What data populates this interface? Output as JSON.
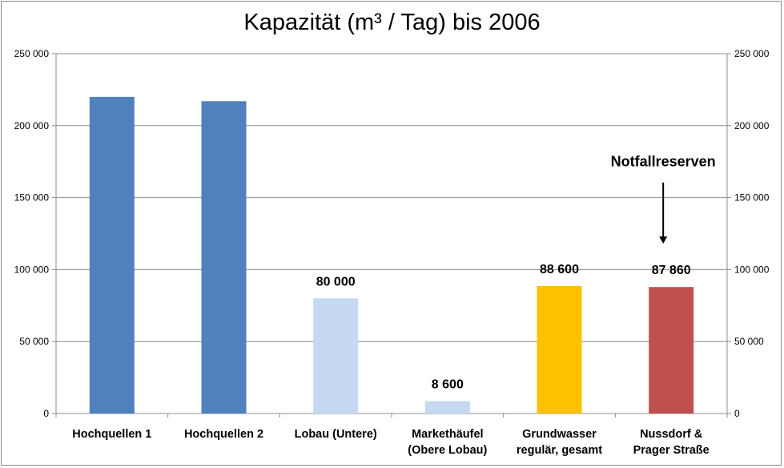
{
  "chart_data": {
    "type": "bar",
    "title": "Kapazität (m³ / Tag) bis 2006",
    "categories": [
      [
        "Hochquellen 1"
      ],
      [
        "Hochquellen 2"
      ],
      [
        "Lobau  (Untere)"
      ],
      [
        "Markethäufel",
        "(Obere Lobau)"
      ],
      [
        "Grundwasser",
        "regulär, gesamt"
      ],
      [
        "Nussdorf &",
        "Prager Straße"
      ]
    ],
    "values": [
      220000,
      217000,
      80000,
      8600,
      88600,
      87860
    ],
    "colors": [
      "#4f81bd",
      "#4f81bd",
      "#c6d9f1",
      "#c6d9f1",
      "#ffc000",
      "#c0504d"
    ],
    "data_labels": [
      "",
      "",
      "80 000",
      "8 600",
      "88 600",
      "87 860"
    ],
    "ylim": [
      0,
      250000
    ],
    "yticks": [
      0,
      50000,
      100000,
      150000,
      200000,
      250000
    ],
    "ytick_labels": [
      "0",
      "50 000",
      "100 000",
      "150 000",
      "200 000",
      "250 000"
    ],
    "secondary_axis": true,
    "grid": true,
    "annotation": {
      "text": "Notfallreserven",
      "category_index": 5,
      "arrow_from_value": 175000,
      "arrow_to_value": 118000
    }
  }
}
